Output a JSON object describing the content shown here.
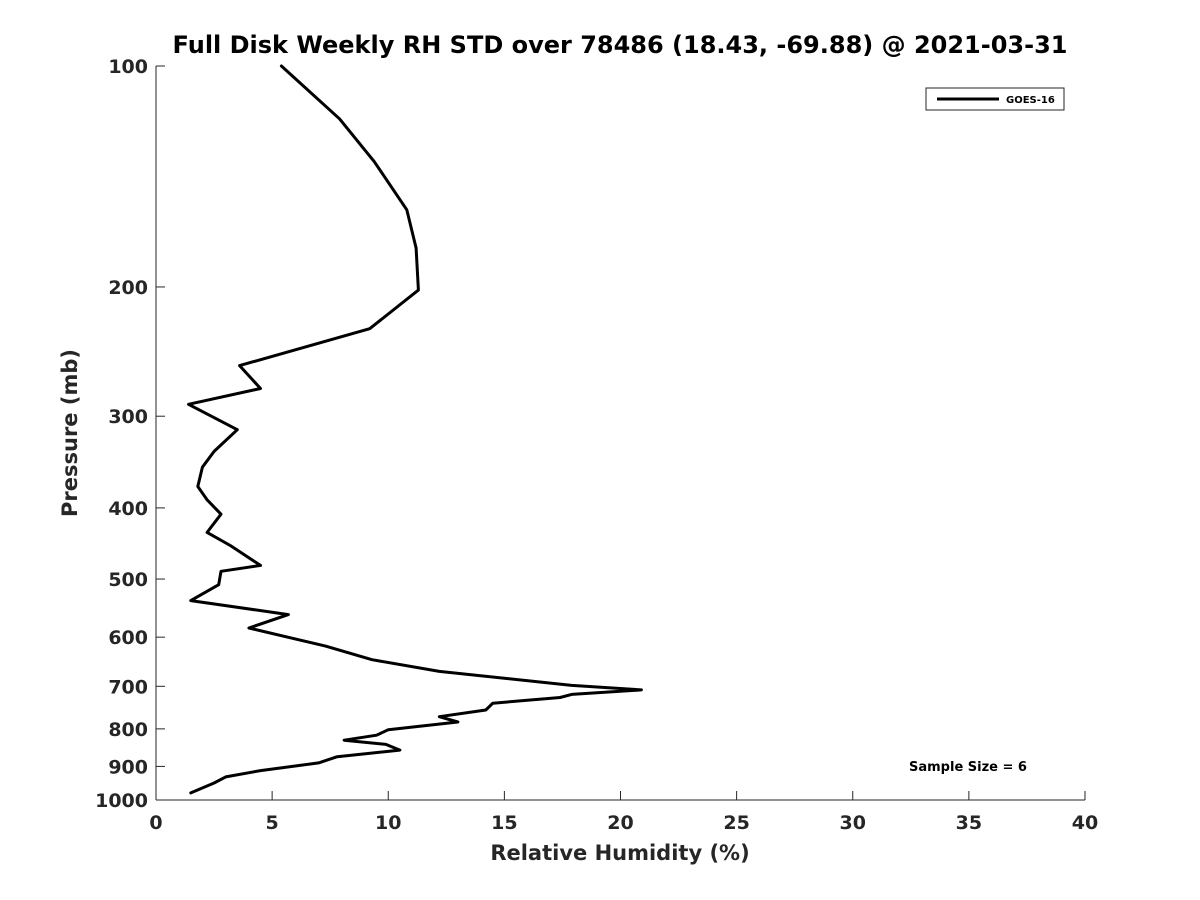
{
  "chart_data": {
    "type": "line",
    "title": "Full Disk Weekly RH STD over 78486 (18.43, -69.88) @ 2021-03-31",
    "xlabel": "Relative Humidity (%)",
    "ylabel": "Pressure (mb)",
    "xlim": [
      0,
      40
    ],
    "ylim": [
      100,
      1000
    ],
    "y_scale": "log",
    "y_reversed": true,
    "grid": false,
    "legend_position": "top-right",
    "x_ticks": [
      0,
      5,
      10,
      15,
      20,
      25,
      30,
      35,
      40
    ],
    "x_tick_labels": [
      "0",
      "5",
      "10",
      "15",
      "20",
      "25",
      "30",
      "35",
      "40"
    ],
    "y_ticks": [
      100,
      200,
      300,
      400,
      500,
      600,
      700,
      800,
      900,
      1000
    ],
    "y_tick_labels": [
      "100",
      "200",
      "300",
      "400",
      "500",
      "600",
      "700",
      "800",
      "900",
      "1000"
    ],
    "series": [
      {
        "name": "GOES-16",
        "color": "#000000",
        "x": [
          5.4,
          7.9,
          9.4,
          10.8,
          11.2,
          11.3,
          9.2,
          3.6,
          4.5,
          1.4,
          3.5,
          2.5,
          2.0,
          1.8,
          2.2,
          2.8,
          2.2,
          3.2,
          4.5,
          2.8,
          2.7,
          1.5,
          5.7,
          4.0,
          7.3,
          9.3,
          12.2,
          17.9,
          20.9,
          17.9,
          17.4,
          14.5,
          14.2,
          12.2,
          13.0,
          10.0,
          9.5,
          8.1,
          9.9,
          10.5,
          7.8,
          7.0,
          4.5,
          3.0,
          2.5,
          1.5
        ],
        "y": [
          100,
          118,
          135,
          157,
          177,
          202,
          228,
          256,
          275,
          289,
          313,
          335,
          352,
          374,
          390,
          408,
          432,
          450,
          479,
          488,
          509,
          535,
          559,
          583,
          617,
          644,
          668,
          698,
          708,
          718,
          725,
          738,
          754,
          770,
          783,
          802,
          816,
          829,
          840,
          855,
          873,
          890,
          912,
          930,
          948,
          978
        ]
      }
    ],
    "annotations": [
      "Sample Size = 6"
    ]
  }
}
